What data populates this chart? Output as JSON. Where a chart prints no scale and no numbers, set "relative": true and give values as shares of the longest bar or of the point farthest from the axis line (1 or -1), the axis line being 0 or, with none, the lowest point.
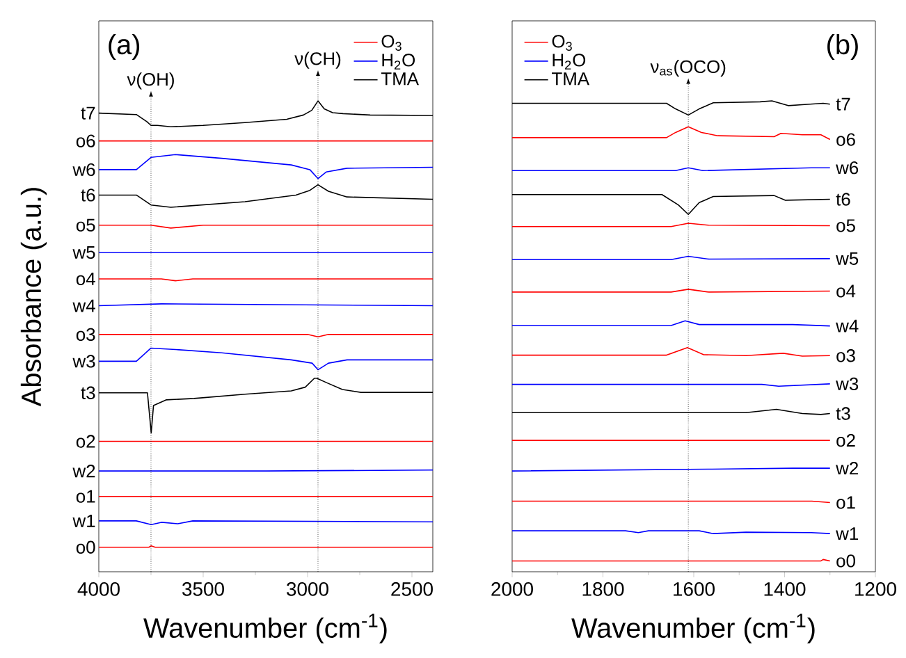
{
  "chart_data": [
    {
      "type": "line",
      "relative": true,
      "xlabel": "Wavenumber (cm$^{-1}$)",
      "ylabel": "Absorbance (a.u.)",
      "xlim": [
        4000,
        2400
      ],
      "xticks": [
        4000,
        3500,
        3000,
        2500
      ],
      "tick_labels": "x",
      "legend": "top right",
      "ref_lines": [
        {
          "axis": "x",
          "value": 3750,
          "label": "ν(OH)",
          "color": "#000000",
          "line_style": "dotted"
        },
        {
          "axis": "x",
          "value": 2950,
          "label": "ν(CH)",
          "color": "#000000",
          "line_style": "dotted"
        }
      ],
      "annotations": [
        "o0",
        "w1",
        "o1",
        "w2",
        "o2",
        "t3",
        "w3",
        "o3",
        "w4",
        "o4",
        "w5",
        "o5",
        "t6",
        "w6",
        "o6",
        "t7",
        "(a)"
      ],
      "series": [
        {
          "name": "O$_{3}$",
          "color": "#ff0000",
          "x": [
            4000,
            3760,
            3749,
            3730,
            2400
          ],
          "values": [
            0.052,
            0.052,
            0.055,
            0.052,
            0.052
          ]
        },
        {
          "name": "H$_{2}$O",
          "color": "#0000ff",
          "x": [
            4000,
            3820,
            3749,
            3700,
            3622,
            3550,
            2400
          ],
          "values": [
            0.108,
            0.108,
            0.1,
            0.105,
            0.102,
            0.108,
            0.106
          ]
        },
        {
          "name": "O$_{3}$",
          "color": "#ff0000",
          "x": [
            4000,
            2400
          ],
          "values": [
            0.16,
            0.16
          ]
        },
        {
          "name": "H$_{2}$O",
          "color": "#0000ff",
          "x": [
            4000,
            3200,
            2400
          ],
          "values": [
            0.214,
            0.214,
            0.216
          ]
        },
        {
          "name": "O$_{3}$",
          "color": "#ff0000",
          "x": [
            4000,
            2400
          ],
          "values": [
            0.277,
            0.277
          ]
        },
        {
          "name": "TMA",
          "color": "#000000",
          "x": [
            4000,
            3767,
            3749,
            3738,
            3678,
            3544,
            3300,
            3078,
            3011,
            2967,
            2956,
            2911,
            2833,
            2744,
            2400
          ],
          "values": [
            0.38,
            0.38,
            0.295,
            0.353,
            0.365,
            0.368,
            0.377,
            0.384,
            0.392,
            0.411,
            0.411,
            0.402,
            0.387,
            0.381,
            0.381
          ]
        },
        {
          "name": "H$_{2}$O",
          "color": "#0000ff",
          "x": [
            4000,
            3820,
            3750,
            3633,
            3411,
            3078,
            2978,
            2950,
            2900,
            2811,
            2400
          ],
          "values": [
            0.447,
            0.447,
            0.475,
            0.472,
            0.465,
            0.45,
            0.443,
            0.429,
            0.443,
            0.45,
            0.45
          ]
        },
        {
          "name": "O$_{3}$",
          "color": "#ff0000",
          "x": [
            4000,
            3000,
            2950,
            2900,
            2400
          ],
          "values": [
            0.504,
            0.504,
            0.499,
            0.504,
            0.504
          ]
        },
        {
          "name": "H$_{2}$O",
          "color": "#0000ff",
          "x": [
            4000,
            3700,
            2400
          ],
          "values": [
            0.565,
            0.569,
            0.565
          ]
        },
        {
          "name": "O$_{3}$",
          "color": "#ff0000",
          "x": [
            4000,
            3700,
            3633,
            3550,
            2400
          ],
          "values": [
            0.622,
            0.622,
            0.618,
            0.622,
            0.622
          ]
        },
        {
          "name": "H$_{2}$O",
          "color": "#0000ff",
          "x": [
            4000,
            2400
          ],
          "values": [
            0.678,
            0.678
          ]
        },
        {
          "name": "O$_{3}$",
          "color": "#ff0000",
          "x": [
            4000,
            3750,
            3655,
            3500,
            2400
          ],
          "values": [
            0.736,
            0.736,
            0.73,
            0.736,
            0.736
          ]
        },
        {
          "name": "TMA",
          "color": "#000000",
          "x": [
            4000,
            3820,
            3750,
            3655,
            3300,
            3056,
            2989,
            2950,
            2900,
            2811,
            2400
          ],
          "values": [
            0.8,
            0.8,
            0.779,
            0.774,
            0.786,
            0.8,
            0.81,
            0.822,
            0.808,
            0.796,
            0.791
          ]
        },
        {
          "name": "H$_{2}$O",
          "color": "#0000ff",
          "x": [
            4000,
            3820,
            3750,
            3633,
            3411,
            3078,
            2989,
            2950,
            2911,
            2811,
            2400
          ],
          "values": [
            0.854,
            0.854,
            0.88,
            0.886,
            0.878,
            0.864,
            0.854,
            0.835,
            0.849,
            0.857,
            0.859
          ]
        },
        {
          "name": "O$_{3}$",
          "color": "#ff0000",
          "x": [
            4000,
            3200,
            2400
          ],
          "values": [
            0.915,
            0.915,
            0.915
          ]
        },
        {
          "name": "TMA",
          "color": "#000000",
          "x": [
            4000,
            3820,
            3770,
            3750,
            3720,
            3655,
            3500,
            3300,
            3100,
            3020,
            2980,
            2950,
            2920,
            2880,
            2830,
            2700,
            2400
          ],
          "values": [
            0.974,
            0.971,
            0.956,
            0.948,
            0.948,
            0.945,
            0.948,
            0.954,
            0.961,
            0.97,
            0.98,
            1,
            0.983,
            0.975,
            0.973,
            0.97,
            0.969
          ]
        }
      ]
    },
    {
      "type": "line",
      "relative": true,
      "xlabel": "Wavenumber (cm$^{-1}$)",
      "xlim": [
        2000,
        1200
      ],
      "xticks": [
        2000,
        1800,
        1600,
        1400,
        1200
      ],
      "tick_labels": "x",
      "legend": "top left",
      "ref_lines": [
        {
          "axis": "x",
          "value": 1612,
          "label": "ν$_{as}$(OCO)",
          "color": "#000000",
          "line_style": "dotted"
        }
      ],
      "annotations": [
        "o0",
        "w1",
        "o1",
        "w2",
        "o2",
        "t3",
        "w3",
        "o3",
        "w4",
        "o4",
        "w5",
        "o5",
        "t6",
        "w6",
        "o6",
        "t7",
        "(b)"
      ],
      "series": [
        {
          "name": "O$_{3}$",
          "color": "#ff0000",
          "x": [
            2000,
            1320,
            1315,
            1300
          ],
          "values": [
            0.023,
            0.023,
            0.026,
            0.023
          ]
        },
        {
          "name": "H$_{2}$O",
          "color": "#0000ff",
          "x": [
            2000,
            1750,
            1722,
            1700,
            1588,
            1557,
            1485,
            1341,
            1300
          ],
          "values": [
            0.087,
            0.087,
            0.083,
            0.087,
            0.087,
            0.081,
            0.084,
            0.083,
            0.081
          ]
        },
        {
          "name": "O$_{3}$",
          "color": "#ff0000",
          "x": [
            2000,
            1340,
            1300
          ],
          "values": [
            0.15,
            0.15,
            0.147
          ]
        },
        {
          "name": "H$_{2}$O",
          "color": "#0000ff",
          "x": [
            2000,
            1560,
            1382,
            1300
          ],
          "values": [
            0.214,
            0.218,
            0.22,
            0.22
          ]
        },
        {
          "name": "O$_{3}$",
          "color": "#ff0000",
          "x": [
            2000,
            1300
          ],
          "values": [
            0.279,
            0.279
          ]
        },
        {
          "name": "TMA",
          "color": "#000000",
          "x": [
            2000,
            1485,
            1418,
            1361,
            1320,
            1300
          ],
          "values": [
            0.338,
            0.338,
            0.345,
            0.336,
            0.334,
            0.336
          ]
        },
        {
          "name": "H$_{2}$O",
          "color": "#0000ff",
          "x": [
            2000,
            1450,
            1413,
            1300
          ],
          "values": [
            0.398,
            0.398,
            0.394,
            0.399
          ]
        },
        {
          "name": "O$_{3}$",
          "color": "#ff0000",
          "x": [
            2000,
            1660,
            1614,
            1578,
            1485,
            1403,
            1361,
            1300
          ],
          "values": [
            0.46,
            0.46,
            0.476,
            0.461,
            0.459,
            0.464,
            0.458,
            0.459
          ]
        },
        {
          "name": "H$_{2}$O",
          "color": "#0000ff",
          "x": [
            2000,
            1650,
            1619,
            1588,
            1382,
            1300
          ],
          "values": [
            0.523,
            0.523,
            0.533,
            0.525,
            0.525,
            0.522
          ]
        },
        {
          "name": "O$_{3}$",
          "color": "#ff0000",
          "x": [
            2000,
            1650,
            1612,
            1567,
            1300
          ],
          "values": [
            0.594,
            0.594,
            0.6,
            0.594,
            0.596
          ]
        },
        {
          "name": "H$_{2}$O",
          "color": "#0000ff",
          "x": [
            2000,
            1650,
            1612,
            1567,
            1300
          ],
          "values": [
            0.663,
            0.663,
            0.67,
            0.664,
            0.665
          ]
        },
        {
          "name": "O$_{3}$",
          "color": "#ff0000",
          "x": [
            2000,
            1650,
            1612,
            1567,
            1300
          ],
          "values": [
            0.733,
            0.733,
            0.74,
            0.736,
            0.735
          ]
        },
        {
          "name": "TMA",
          "color": "#000000",
          "x": [
            2000,
            1670,
            1634,
            1612,
            1588,
            1557,
            1423,
            1398,
            1300
          ],
          "values": [
            0.801,
            0.801,
            0.779,
            0.759,
            0.784,
            0.797,
            0.799,
            0.789,
            0.791
          ]
        },
        {
          "name": "H$_{2}$O",
          "color": "#0000ff",
          "x": [
            2000,
            1640,
            1612,
            1580,
            1341,
            1300
          ],
          "values": [
            0.852,
            0.852,
            0.858,
            0.852,
            0.858,
            0.858
          ]
        },
        {
          "name": "O$_{3}$",
          "color": "#ff0000",
          "x": [
            2000,
            1660,
            1640,
            1612,
            1583,
            1547,
            1423,
            1408,
            1361,
            1320,
            1300
          ],
          "values": [
            0.922,
            0.922,
            0.933,
            0.945,
            0.933,
            0.926,
            0.924,
            0.931,
            0.928,
            0.928,
            0.918
          ]
        },
        {
          "name": "TMA",
          "color": "#000000",
          "x": [
            2000,
            1660,
            1640,
            1612,
            1588,
            1557,
            1454,
            1428,
            1392,
            1361,
            1315,
            1300
          ],
          "values": [
            0.995,
            0.995,
            0.983,
            0.97,
            0.983,
            0.996,
            0.998,
            1,
            0.99,
            0.992,
            0.995,
            0.993
          ]
        }
      ]
    }
  ]
}
